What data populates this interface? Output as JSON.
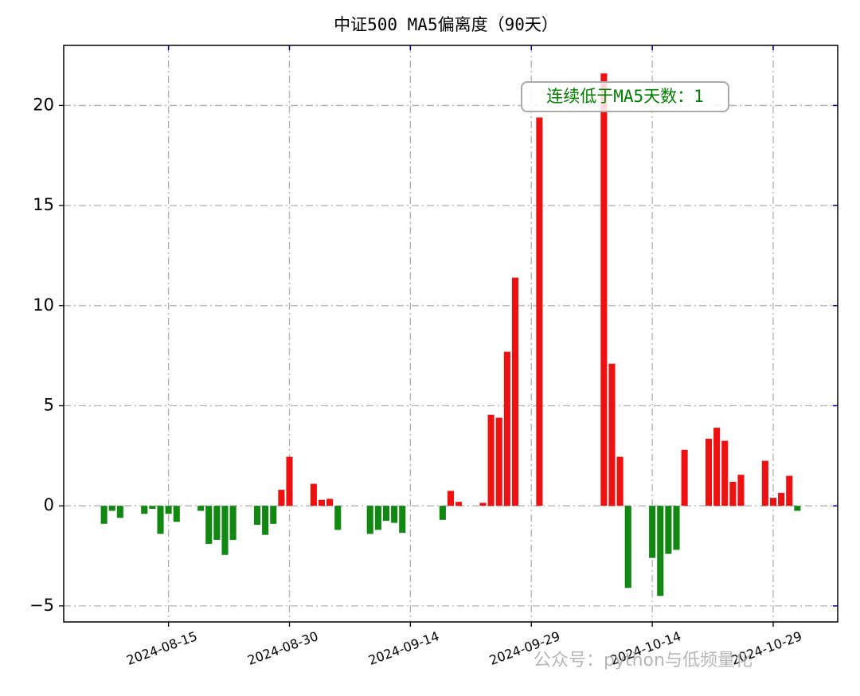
{
  "chart_data": {
    "type": "bar",
    "title": "中证500 MA5偏离度（90天）",
    "annotation": "连续低于MA5天数：1",
    "watermark": "公众号：python与低频量化",
    "x": [
      "2024-08-07",
      "2024-08-08",
      "2024-08-09",
      "2024-08-12",
      "2024-08-13",
      "2024-08-14",
      "2024-08-15",
      "2024-08-16",
      "2024-08-19",
      "2024-08-20",
      "2024-08-21",
      "2024-08-22",
      "2024-08-23",
      "2024-08-26",
      "2024-08-27",
      "2024-08-28",
      "2024-08-29",
      "2024-08-30",
      "2024-09-02",
      "2024-09-03",
      "2024-09-04",
      "2024-09-05",
      "2024-09-09",
      "2024-09-10",
      "2024-09-11",
      "2024-09-12",
      "2024-09-13",
      "2024-09-18",
      "2024-09-19",
      "2024-09-20",
      "2024-09-23",
      "2024-09-24",
      "2024-09-25",
      "2024-09-26",
      "2024-09-27",
      "2024-09-30",
      "2024-10-08",
      "2024-10-09",
      "2024-10-10",
      "2024-10-11",
      "2024-10-14",
      "2024-10-15",
      "2024-10-16",
      "2024-10-17",
      "2024-10-18",
      "2024-10-21",
      "2024-10-22",
      "2024-10-23",
      "2024-10-24",
      "2024-10-25",
      "2024-10-28",
      "2024-10-29",
      "2024-10-30",
      "2024-10-31",
      "2024-11-01"
    ],
    "values": [
      -0.9,
      -0.25,
      -0.6,
      -0.4,
      -0.15,
      -1.4,
      -0.4,
      -0.8,
      -0.25,
      -1.9,
      -1.7,
      -2.45,
      -1.7,
      -0.95,
      -1.45,
      -0.9,
      0.8,
      2.45,
      1.1,
      0.3,
      0.35,
      -1.2,
      -1.4,
      -1.2,
      -0.75,
      -0.85,
      -1.35,
      -0.7,
      0.75,
      0.2,
      0.15,
      4.55,
      4.4,
      7.7,
      11.4,
      19.4,
      21.6,
      7.1,
      2.45,
      -4.1,
      -2.6,
      -4.5,
      -2.4,
      -2.2,
      2.8,
      3.35,
      3.9,
      3.25,
      1.2,
      1.55,
      2.25,
      0.4,
      0.65,
      1.5,
      -0.25
    ],
    "positive_color": "#ee1111",
    "negative_color": "#118811",
    "xlim": [
      "2024-08-02",
      "2024-11-06"
    ],
    "xticks": [
      "2024-08-15",
      "2024-08-30",
      "2024-09-14",
      "2024-09-29",
      "2024-10-14",
      "2024-10-29"
    ],
    "ylim": [
      -5.8,
      23
    ],
    "yticks": [
      {
        "value": -5,
        "label": "−5"
      },
      0,
      5,
      10,
      15,
      20
    ],
    "grid": true
  }
}
